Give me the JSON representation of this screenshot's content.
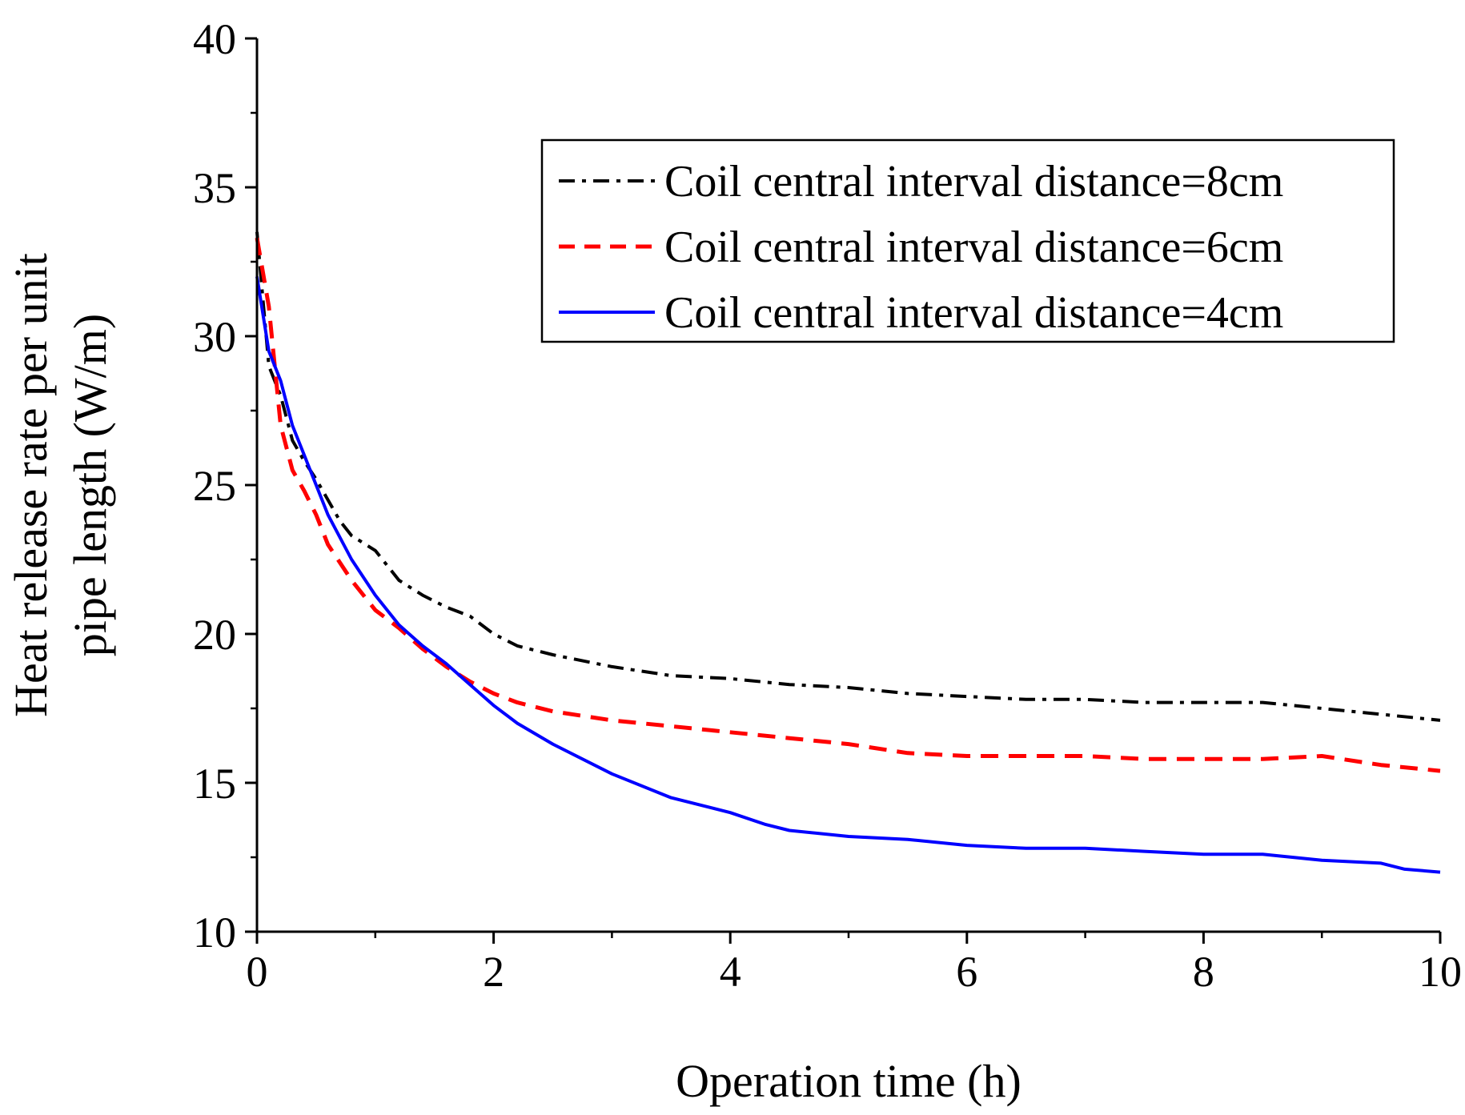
{
  "chart_data": {
    "type": "line",
    "title": "",
    "xlabel": "Operation time  (h)",
    "ylabel_line1": "Heat release rate per unit",
    "ylabel_line2": "pipe length (W/m)",
    "xlim": [
      0,
      10
    ],
    "ylim": [
      10,
      40
    ],
    "xticks": [
      0,
      2,
      4,
      6,
      8,
      10
    ],
    "xtick_labels": [
      "0",
      "2",
      "4",
      "6",
      "8",
      "10"
    ],
    "yticks": [
      10,
      15,
      20,
      25,
      30,
      35,
      40
    ],
    "ytick_labels": [
      "10",
      "15",
      "20",
      "25",
      "30",
      "35",
      "40"
    ],
    "grid": false,
    "legend_position": "top-right",
    "series": [
      {
        "name": "Coil central interval distance=8cm",
        "color": "#000000",
        "dash": "dash-dot",
        "x": [
          0,
          0.1,
          0.2,
          0.3,
          0.4,
          0.5,
          0.6,
          0.7,
          0.8,
          1.0,
          1.2,
          1.4,
          1.6,
          1.8,
          2.0,
          2.2,
          2.5,
          3.0,
          3.5,
          4.0,
          4.5,
          5.0,
          5.5,
          6.0,
          6.5,
          7.0,
          7.5,
          8.0,
          8.5,
          9.0,
          9.5,
          10.0
        ],
        "values": [
          33.5,
          29.0,
          28.0,
          26.5,
          25.8,
          25.2,
          24.5,
          23.8,
          23.3,
          22.8,
          21.8,
          21.3,
          20.9,
          20.6,
          20.0,
          19.6,
          19.3,
          18.9,
          18.6,
          18.5,
          18.3,
          18.2,
          18.0,
          17.9,
          17.8,
          17.8,
          17.7,
          17.7,
          17.7,
          17.5,
          17.3,
          17.1
        ]
      },
      {
        "name": "Coil central interval distance=6cm",
        "color": "#ff0000",
        "dash": "dash",
        "x": [
          0,
          0.1,
          0.2,
          0.3,
          0.4,
          0.5,
          0.6,
          0.8,
          1.0,
          1.2,
          1.4,
          1.6,
          1.8,
          2.0,
          2.2,
          2.5,
          3.0,
          3.5,
          4.0,
          4.5,
          5.0,
          5.5,
          6.0,
          6.5,
          7.0,
          7.5,
          8.0,
          8.5,
          9.0,
          9.5,
          10.0
        ],
        "values": [
          33.3,
          31.0,
          27.0,
          25.5,
          24.8,
          24.0,
          23.0,
          21.8,
          20.8,
          20.2,
          19.5,
          18.9,
          18.4,
          18.0,
          17.7,
          17.4,
          17.1,
          16.9,
          16.7,
          16.5,
          16.3,
          16.0,
          15.9,
          15.9,
          15.9,
          15.8,
          15.8,
          15.8,
          15.9,
          15.6,
          15.4
        ]
      },
      {
        "name": "Coil central interval distance=4cm",
        "color": "#0000ff",
        "dash": "solid",
        "x": [
          0,
          0.1,
          0.2,
          0.3,
          0.4,
          0.5,
          0.6,
          0.8,
          1.0,
          1.2,
          1.4,
          1.6,
          1.8,
          2.0,
          2.2,
          2.5,
          3.0,
          3.5,
          4.0,
          4.3,
          4.5,
          5.0,
          5.5,
          6.0,
          6.5,
          7.0,
          7.5,
          8.0,
          8.5,
          9.0,
          9.5,
          9.7,
          10.0
        ],
        "values": [
          32.0,
          29.5,
          28.5,
          27.0,
          26.0,
          25.0,
          24.0,
          22.5,
          21.3,
          20.3,
          19.6,
          19.0,
          18.3,
          17.6,
          17.0,
          16.3,
          15.3,
          14.5,
          14.0,
          13.6,
          13.4,
          13.2,
          13.1,
          12.9,
          12.8,
          12.8,
          12.7,
          12.6,
          12.6,
          12.4,
          12.3,
          12.1,
          12.0
        ]
      }
    ]
  }
}
